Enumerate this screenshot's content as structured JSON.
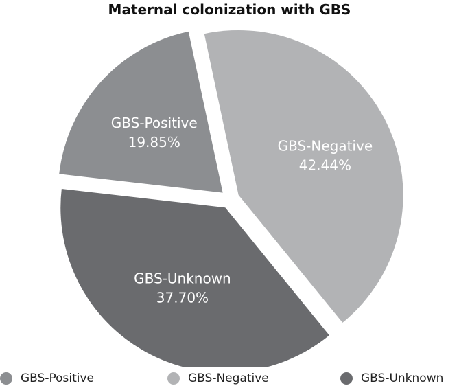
{
  "chart_data": {
    "type": "pie",
    "title": "Maternal colonization with GBS",
    "slices": [
      {
        "label": "GBS-Positive",
        "value": 19.85,
        "value_label": "19.85%",
        "color": "#8c8e91"
      },
      {
        "label": "GBS-Negative",
        "value": 42.44,
        "value_label": "42.44%",
        "color": "#b2b3b5"
      },
      {
        "label": "GBS-Unknown",
        "value": 37.7,
        "value_label": "37.70%",
        "color": "#6a6b6e"
      }
    ],
    "legend": {
      "placement": "bottom",
      "entries": [
        "GBS-Positive",
        "GBS-Negative",
        "GBS-Unknown"
      ]
    }
  }
}
